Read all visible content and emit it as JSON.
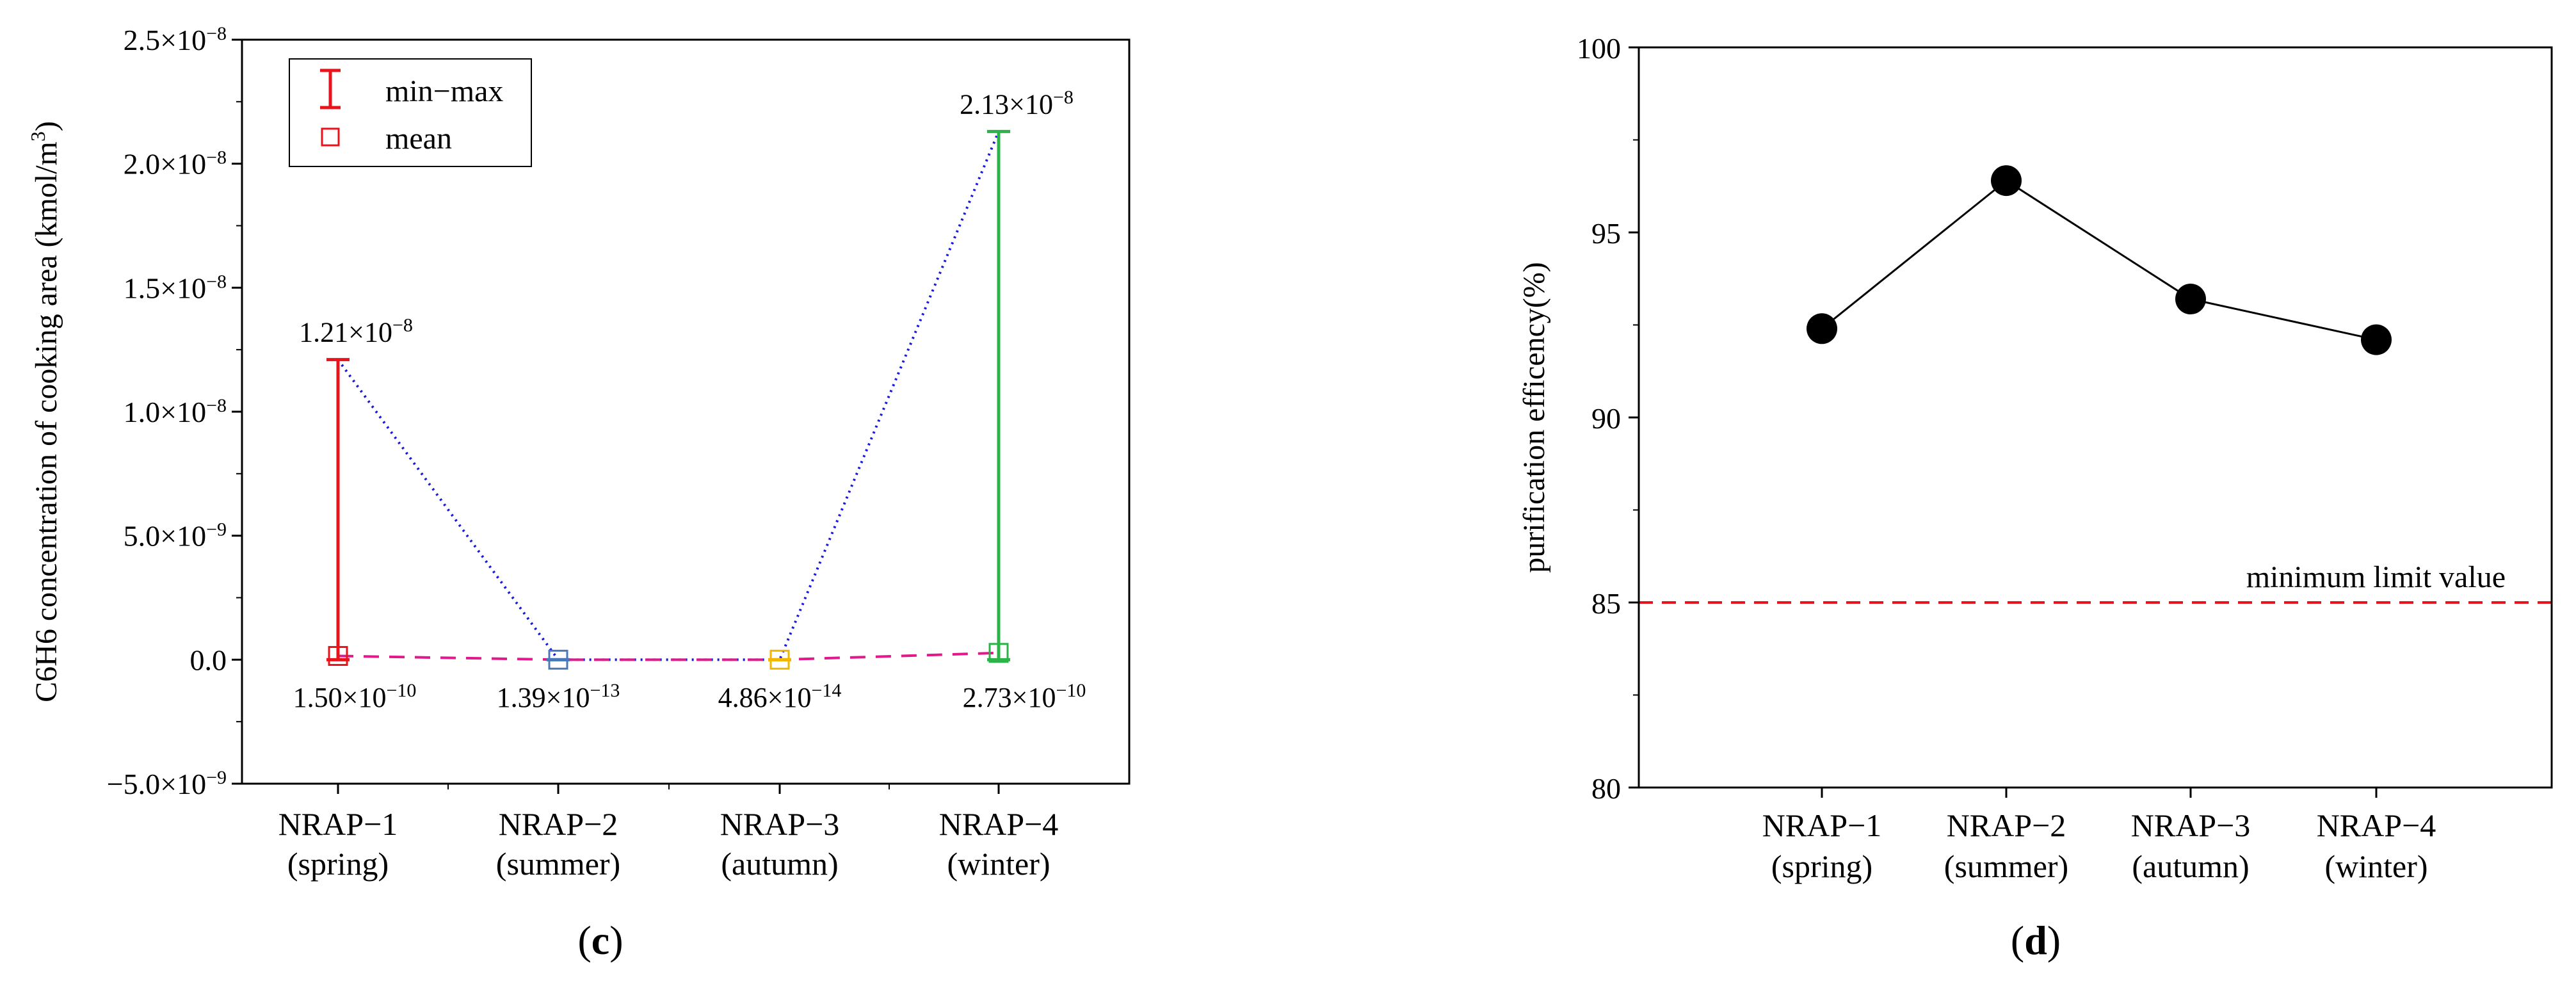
{
  "chart_data": [
    {
      "panel": "c",
      "type": "range",
      "panel_label": "c",
      "ylabel": "C6H6 concentration of cooking area (kmol/m3)",
      "ylabel_parts": {
        "main": "C6H6 concentration of cooking area (kmol/m",
        "sup": "3",
        "end": ")"
      },
      "ylim": [
        -5e-09,
        2.5e-08
      ],
      "yticks": [
        {
          "value": -5e-09,
          "mant": "−5.0×10",
          "exp": "−9"
        },
        {
          "value": 0,
          "mant": "0.0",
          "exp": ""
        },
        {
          "value": 5e-09,
          "mant": "5.0×10",
          "exp": "−9"
        },
        {
          "value": 1e-08,
          "mant": "1.0×10",
          "exp": "−8"
        },
        {
          "value": 1.5e-08,
          "mant": "1.5×10",
          "exp": "−8"
        },
        {
          "value": 2e-08,
          "mant": "2.0×10",
          "exp": "−8"
        },
        {
          "value": 2.5e-08,
          "mant": "2.5×10",
          "exp": "−8"
        }
      ],
      "categories": [
        {
          "line1": "NRAP−1",
          "line2": "(spring)",
          "color": "#e8141b",
          "min": 0,
          "max": 1.21e-08,
          "mean": 1.5e-10,
          "max_label": {
            "mant": "1.21×10",
            "exp": "−8"
          },
          "mean_label": {
            "mant": "1.50×10",
            "exp": "−10"
          }
        },
        {
          "line1": "NRAP−2",
          "line2": "(summer)",
          "color": "#4a78b8",
          "min": 0,
          "max": 0,
          "mean": 1.39e-13,
          "max_label": null,
          "mean_label": {
            "mant": "1.39×10",
            "exp": "−13"
          }
        },
        {
          "line1": "NRAP−3",
          "line2": "(autumn)",
          "color": "#f2b500",
          "min": 0,
          "max": 0,
          "mean": 4.86e-14,
          "max_label": null,
          "mean_label": {
            "mant": "4.86×10",
            "exp": "−14"
          }
        },
        {
          "line1": "NRAP−4",
          "line2": "(winter)",
          "color": "#2db34a",
          "min": 0,
          "max": 2.13e-08,
          "mean": 2.73e-10,
          "max_label": {
            "mant": "2.13×10",
            "exp": "−8"
          },
          "mean_label": {
            "mant": "2.73×10",
            "exp": "−10"
          }
        }
      ],
      "legend": {
        "minmax": "min−max",
        "mean": "mean"
      }
    },
    {
      "panel": "d",
      "type": "line",
      "panel_label": "d",
      "ylabel": "purification efficency(%)",
      "ylim": [
        80,
        100
      ],
      "yticks": [
        80,
        85,
        90,
        95,
        100
      ],
      "categories": [
        {
          "line1": "NRAP−1",
          "line2": "(spring)"
        },
        {
          "line1": "NRAP−2",
          "line2": "(summer)"
        },
        {
          "line1": "NRAP−3",
          "line2": "(autumn)"
        },
        {
          "line1": "NRAP−4",
          "line2": "(winter)"
        }
      ],
      "values": [
        92.4,
        96.4,
        93.2,
        92.1
      ],
      "reference_line": {
        "value": 85,
        "label": "minimum limit value",
        "color": "#e8141b"
      }
    }
  ]
}
